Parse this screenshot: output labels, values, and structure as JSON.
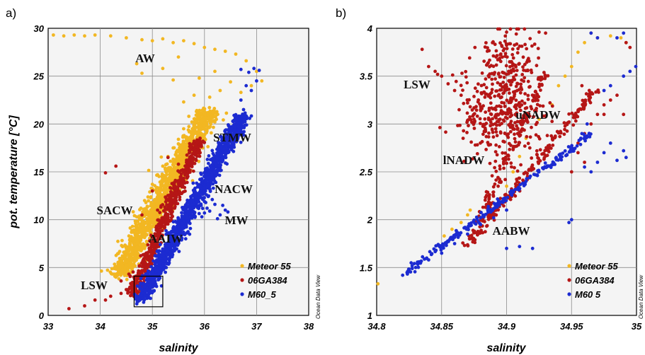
{
  "colors": {
    "Meteor 55": "#f2b722",
    "06GA384": "#b51616",
    "M60_5": "#1c2bd1"
  },
  "chart_data": [
    {
      "type": "scatter",
      "panel_label": "a)",
      "xlabel": "salinity",
      "ylabel": "pot. temperature [°C]",
      "xlim": [
        33,
        38
      ],
      "ylim": [
        0,
        30
      ],
      "xticks": [
        "33",
        "34",
        "35",
        "36",
        "37",
        "38"
      ],
      "yticks": [
        "0",
        "5",
        "10",
        "15",
        "20",
        "25",
        "30"
      ],
      "grid": true,
      "legend": [
        "Meteor 55",
        "06GA384",
        "M60_5"
      ],
      "legend_display": [
        "Meteor 55",
        "06GA384",
        "M60_5"
      ],
      "legend_position": "bottom-right",
      "credit": "Ocean Data View",
      "annotations": [
        "AW",
        "STMW",
        "NACW",
        "SACW",
        "MW",
        "AAIW",
        "LSW"
      ],
      "highlight_box": {
        "x": [
          34.65,
          35.2
        ],
        "y": [
          0.9,
          4.1
        ]
      },
      "series": [
        {
          "name": "Meteor 55",
          "points": [
            [
              33.1,
              29.3
            ],
            [
              33.3,
              29.2
            ],
            [
              33.5,
              29.3
            ],
            [
              33.7,
              29.2
            ],
            [
              33.9,
              29.3
            ],
            [
              34.2,
              29.2
            ],
            [
              34.5,
              29.0
            ],
            [
              34.8,
              28.8
            ],
            [
              35.0,
              28.7
            ],
            [
              35.2,
              28.9
            ],
            [
              35.4,
              28.5
            ],
            [
              35.6,
              28.7
            ],
            [
              35.8,
              28.4
            ],
            [
              36.0,
              28.0
            ],
            [
              36.2,
              27.8
            ],
            [
              36.4,
              27.6
            ],
            [
              36.6,
              27.3
            ],
            [
              36.8,
              26.6
            ],
            [
              37.0,
              25.5
            ],
            [
              37.1,
              24.5
            ],
            [
              36.9,
              24.0
            ],
            [
              36.7,
              23.3
            ],
            [
              36.5,
              24.4
            ],
            [
              36.3,
              23.5
            ],
            [
              36.1,
              22.8
            ],
            [
              35.8,
              23.0
            ],
            [
              35.6,
              22.3
            ],
            [
              35.4,
              24.6
            ],
            [
              35.9,
              24.8
            ],
            [
              36.2,
              25.5
            ],
            [
              35.5,
              27.0
            ],
            [
              34.7,
              26.3
            ],
            [
              34.8,
              25.3
            ],
            [
              35.2,
              25.8
            ],
            [
              35.9,
              21.4
            ],
            [
              35.7,
              20.8
            ],
            [
              35.6,
              19.5
            ],
            [
              35.5,
              18.4
            ],
            [
              35.4,
              17.5
            ],
            [
              35.3,
              16.6
            ],
            [
              35.2,
              15.6
            ],
            [
              35.1,
              14.7
            ],
            [
              35.0,
              13.7
            ],
            [
              34.95,
              12.9
            ],
            [
              34.85,
              12.0
            ],
            [
              34.78,
              11.2
            ],
            [
              34.7,
              10.3
            ],
            [
              34.62,
              9.3
            ],
            [
              34.55,
              8.3
            ],
            [
              34.48,
              7.3
            ],
            [
              34.45,
              6.6
            ],
            [
              34.4,
              5.6
            ],
            [
              34.35,
              4.6
            ],
            [
              34.3,
              4.0
            ],
            [
              34.6,
              4.5
            ],
            [
              34.7,
              4.0
            ]
          ],
          "band": {
            "x1": 34.35,
            "y1": 4.0,
            "x2": 36.1,
            "y2": 21.5,
            "halfwidth": 0.22,
            "count": 1300
          }
        },
        {
          "name": "06GA384",
          "points": [
            [
              33.4,
              0.7
            ],
            [
              33.7,
              1.0
            ],
            [
              33.9,
              1.6
            ],
            [
              34.1,
              1.6
            ],
            [
              34.2,
              2.0
            ],
            [
              34.4,
              2.3
            ],
            [
              34.5,
              2.7
            ],
            [
              34.6,
              3.2
            ],
            [
              34.7,
              3.5
            ],
            [
              34.4,
              3.6
            ],
            [
              34.1,
              14.9
            ],
            [
              34.3,
              15.6
            ],
            [
              35.3,
              16.5
            ],
            [
              35.5,
              15.8
            ],
            [
              35.8,
              18.2
            ],
            [
              35.0,
              13.0
            ],
            [
              35.1,
              11.0
            ],
            [
              34.8,
              10.5
            ]
          ],
          "band": {
            "x1": 34.6,
            "y1": 2.0,
            "x2": 35.9,
            "y2": 18.5,
            "halfwidth": 0.12,
            "count": 600
          }
        },
        {
          "name": "M60_5",
          "points": [
            [
              35.9,
              11.4
            ],
            [
              36.0,
              11.9
            ],
            [
              36.1,
              10.9
            ],
            [
              36.2,
              11.6
            ],
            [
              36.3,
              10.5
            ],
            [
              36.4,
              11.0
            ],
            [
              35.95,
              10.3
            ],
            [
              36.15,
              12.1
            ],
            [
              36.25,
              10.1
            ],
            [
              36.35,
              11.5
            ],
            [
              36.0,
              10.7
            ],
            [
              36.45,
              10.8
            ],
            [
              36.05,
              11.2
            ],
            [
              36.6,
              20.8
            ],
            [
              36.7,
              22.5
            ],
            [
              36.8,
              24.0
            ],
            [
              36.7,
              25.7
            ],
            [
              36.85,
              25.4
            ],
            [
              36.95,
              25.8
            ],
            [
              37.0,
              24.5
            ],
            [
              37.05,
              25.6
            ],
            [
              36.9,
              23.5
            ],
            [
              36.75,
              21.5
            ]
          ],
          "band": {
            "x1": 34.75,
            "y1": 1.5,
            "x2": 36.75,
            "y2": 21.0,
            "halfwidth": 0.15,
            "count": 1300
          }
        }
      ]
    },
    {
      "type": "scatter",
      "panel_label": "b)",
      "xlabel": "salinity",
      "ylabel": "",
      "xlim": [
        34.8,
        35.0
      ],
      "ylim": [
        1,
        4
      ],
      "xticks": [
        "34.8",
        "34.85",
        "34.9",
        "34.95",
        "35"
      ],
      "yticks": [
        "1",
        "1.5",
        "2",
        "2.5",
        "3",
        "3.5",
        "4"
      ],
      "grid": true,
      "legend": [
        "Meteor 55",
        "06GA384",
        "M60_5"
      ],
      "legend_display": [
        "Meteor 55",
        "06GA384",
        "M60 5"
      ],
      "legend_position": "bottom-right",
      "credit": "Ocean Data View",
      "annotations": [
        "LSW",
        "uNADW",
        "lNADW",
        "AABW"
      ],
      "series": [
        {
          "name": "Meteor 55",
          "points": [
            [
              34.801,
              1.33
            ],
            [
              34.852,
              1.83
            ],
            [
              34.858,
              1.9
            ],
            [
              34.865,
              1.97
            ],
            [
              34.87,
              2.05
            ],
            [
              34.872,
              2.1
            ],
            [
              34.9,
              2.35
            ],
            [
              34.905,
              2.5
            ],
            [
              34.91,
              2.66
            ],
            [
              34.915,
              2.85
            ],
            [
              34.925,
              3.05
            ],
            [
              34.935,
              3.2
            ],
            [
              34.94,
              3.4
            ],
            [
              34.945,
              3.5
            ],
            [
              34.95,
              3.6
            ],
            [
              34.955,
              3.75
            ],
            [
              34.96,
              3.85
            ],
            [
              34.965,
              3.95
            ],
            [
              34.97,
              3.9
            ],
            [
              34.98,
              3.92
            ],
            [
              34.992,
              3.85
            ],
            [
              34.988,
              3.9
            ]
          ]
        },
        {
          "name": "06GA384",
          "points": [
            [
              34.835,
              3.78
            ],
            [
              34.84,
              3.6
            ],
            [
              34.845,
              3.55
            ],
            [
              34.85,
              3.5
            ],
            [
              34.855,
              3.42
            ],
            [
              34.86,
              3.35
            ],
            [
              34.865,
              3.3
            ],
            [
              34.87,
              3.22
            ],
            [
              34.872,
              3.18
            ],
            [
              34.88,
              3.15
            ],
            [
              34.925,
              3.96
            ],
            [
              34.93,
              3.95
            ],
            [
              34.9,
              3.96
            ],
            [
              34.958,
              3.4
            ],
            [
              34.955,
              2.8
            ],
            [
              34.96,
              2.9
            ],
            [
              34.965,
              3.0
            ],
            [
              34.97,
              3.1
            ],
            [
              34.975,
              3.2
            ],
            [
              34.98,
              3.25
            ],
            [
              34.985,
              3.3
            ],
            [
              34.99,
              3.1
            ],
            [
              34.992,
              3.85
            ],
            [
              34.995,
              3.8
            ],
            [
              34.975,
              3.1
            ],
            [
              34.96,
              2.6
            ],
            [
              34.95,
              2.5
            ],
            [
              34.955,
              2.7
            ]
          ],
          "clouds": [
            {
              "cx": 34.895,
              "cy": 3.1,
              "sx": 0.016,
              "sy": 0.25,
              "count": 330
            },
            {
              "cx": 34.905,
              "cy": 3.6,
              "sx": 0.012,
              "sy": 0.2,
              "count": 130
            }
          ],
          "bands": [
            {
              "x1": 34.87,
              "y1": 1.7,
              "x2": 34.93,
              "y2": 3.55,
              "halfwidth": 0.004,
              "count": 150
            },
            {
              "x1": 34.875,
              "y1": 1.8,
              "x2": 34.968,
              "y2": 3.35,
              "halfwidth": 0.004,
              "count": 180
            }
          ]
        },
        {
          "name": "M60_5",
          "points": [
            [
              34.82,
              1.42
            ],
            [
              34.83,
              1.5
            ],
            [
              34.84,
              1.58
            ],
            [
              34.85,
              1.65
            ],
            [
              34.86,
              1.75
            ],
            [
              34.87,
              1.85
            ],
            [
              34.88,
              1.95
            ],
            [
              34.89,
              2.02
            ],
            [
              34.9,
              2.1
            ],
            [
              34.9,
              1.7
            ],
            [
              34.91,
              1.72
            ],
            [
              34.92,
              1.7
            ],
            [
              34.95,
              2.0
            ],
            [
              34.948,
              1.97
            ],
            [
              34.96,
              2.55
            ],
            [
              34.965,
              2.5
            ],
            [
              34.97,
              2.6
            ],
            [
              34.975,
              2.7
            ],
            [
              34.985,
              2.62
            ],
            [
              34.99,
              2.72
            ],
            [
              34.992,
              2.65
            ],
            [
              34.98,
              2.8
            ],
            [
              34.99,
              3.5
            ],
            [
              34.995,
              3.55
            ],
            [
              35.0,
              3.6
            ],
            [
              34.985,
              3.9
            ],
            [
              34.99,
              3.95
            ],
            [
              34.965,
              3.95
            ],
            [
              34.97,
              3.9
            ],
            [
              34.975,
              3.35
            ],
            [
              34.98,
              3.4
            ],
            [
              34.962,
              3.0
            ],
            [
              34.958,
              2.9
            ]
          ],
          "bands": [
            {
              "x1": 34.82,
              "y1": 1.42,
              "x2": 34.965,
              "y2": 2.9,
              "halfwidth": 0.004,
              "count": 220
            }
          ]
        }
      ]
    }
  ]
}
